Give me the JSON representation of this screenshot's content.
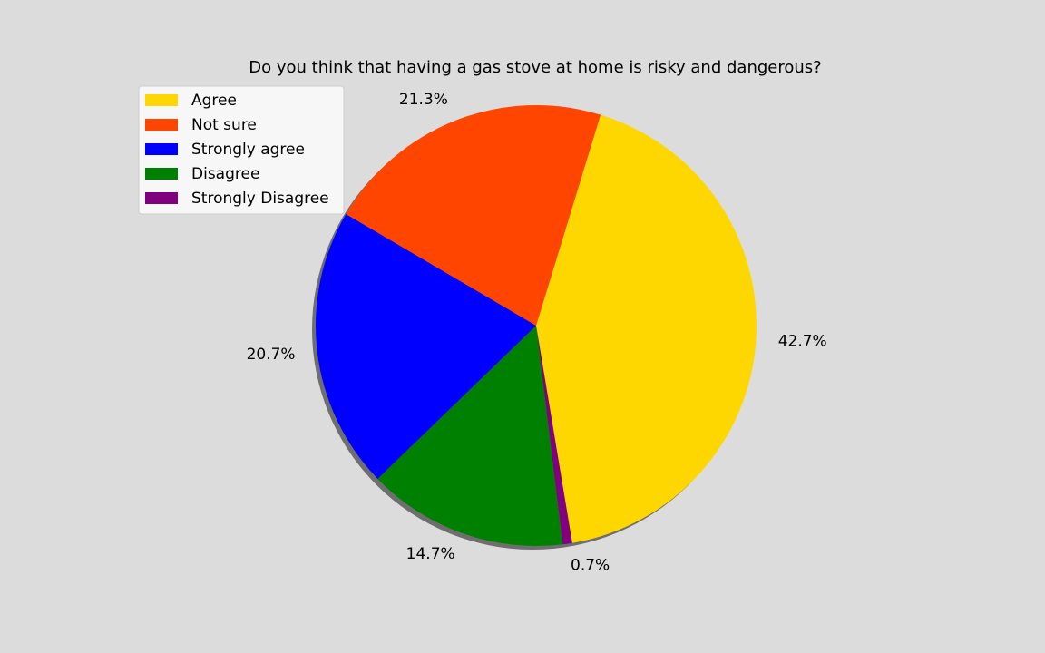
{
  "chart_data": {
    "type": "pie",
    "title": "Do you think that having a gas stove at home is risky and dangerous?",
    "shadow": true,
    "start_angle_deg": 73,
    "direction": "clockwise",
    "legend_position": "top-left",
    "slices": [
      {
        "label": "Agree",
        "value": 42.7,
        "display": "42.7%",
        "color": "#ffd700"
      },
      {
        "label": "Strongly Disagree",
        "value": 0.7,
        "display": "0.7%",
        "color": "#800080"
      },
      {
        "label": "Disagree",
        "value": 14.7,
        "display": "14.7%",
        "color": "#008000"
      },
      {
        "label": "Strongly agree",
        "value": 20.7,
        "display": "20.7%",
        "color": "#0000ff"
      },
      {
        "label": "Not sure",
        "value": 21.3,
        "display": "21.3%",
        "color": "#ff4500"
      }
    ],
    "legend_order": [
      "Agree",
      "Not sure",
      "Strongly agree",
      "Disagree",
      "Strongly Disagree"
    ]
  }
}
